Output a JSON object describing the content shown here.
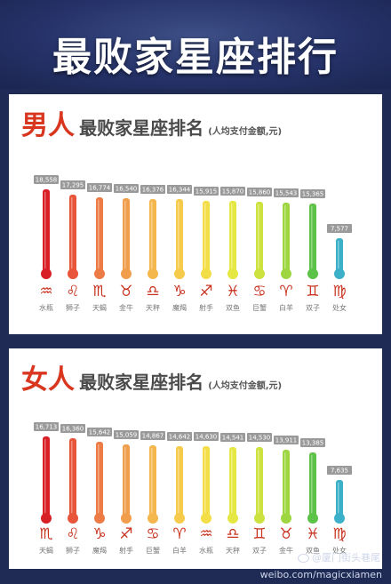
{
  "banner": {
    "title": "最败家星座排行"
  },
  "male_panel": {
    "heading_main": "男人",
    "heading_rest": "最败家星座排名",
    "heading_note": "(人均支付金额,元)"
  },
  "female_panel": {
    "heading_main": "女人",
    "heading_rest": "最败家星座排名",
    "heading_note": "(人均支付金额,元)"
  },
  "footer": {
    "watermark": "@厦门街头巷尾",
    "weibo_url": "weibo.com/magicxiamen"
  },
  "colors": {
    "bar_gradient": [
      "#d81f26",
      "#e8553a",
      "#ec7b45",
      "#f09d4c",
      "#f4b74d",
      "#f6ca4a",
      "#f3de47",
      "#e5e842",
      "#cde23f",
      "#9ed641",
      "#5cc248",
      "#3cb0c9"
    ],
    "heading_red": "#d9361f",
    "background": "#1f2b55"
  },
  "chart_data": [
    {
      "type": "bar",
      "title": "男人最败家星座排名",
      "unit": "人均支付金额,元",
      "categories": [
        "水瓶",
        "狮子",
        "天蝎",
        "金牛",
        "天秤",
        "魔羯",
        "射手",
        "双鱼",
        "巨蟹",
        "白羊",
        "双子",
        "处女"
      ],
      "symbols": [
        "♒",
        "♌",
        "♏",
        "♉",
        "♎",
        "♑",
        "♐",
        "♓",
        "♋",
        "♈",
        "♊",
        "♍"
      ],
      "values": [
        18558,
        17295,
        16774,
        16540,
        16376,
        16344,
        15915,
        15870,
        15860,
        15543,
        15365,
        7577
      ],
      "value_labels": [
        "18,558",
        "17,295",
        "16,774",
        "16,540",
        "16,376",
        "16,344",
        "15,915",
        "15,870",
        "15,860",
        "15,543",
        "15,365",
        "7,577"
      ]
    },
    {
      "type": "bar",
      "title": "女人最败家星座排名",
      "unit": "人均支付金额,元",
      "categories": [
        "天蝎",
        "狮子",
        "魔羯",
        "射手",
        "巨蟹",
        "白羊",
        "水瓶",
        "天秤",
        "双子",
        "金牛",
        "双鱼",
        "处女"
      ],
      "symbols": [
        "♏",
        "♌",
        "♑",
        "♐",
        "♋",
        "♈",
        "♒",
        "♎",
        "♊",
        "♉",
        "♓",
        "♍"
      ],
      "values": [
        16713,
        16360,
        15642,
        15059,
        14867,
        14642,
        14630,
        14541,
        14530,
        13911,
        13385,
        7635
      ],
      "value_labels": [
        "16,713",
        "16,360",
        "15,642",
        "15,059",
        "14,867",
        "14,642",
        "14,630",
        "14,541",
        "14,530",
        "13,911",
        "13,385",
        "7,635"
      ]
    }
  ]
}
